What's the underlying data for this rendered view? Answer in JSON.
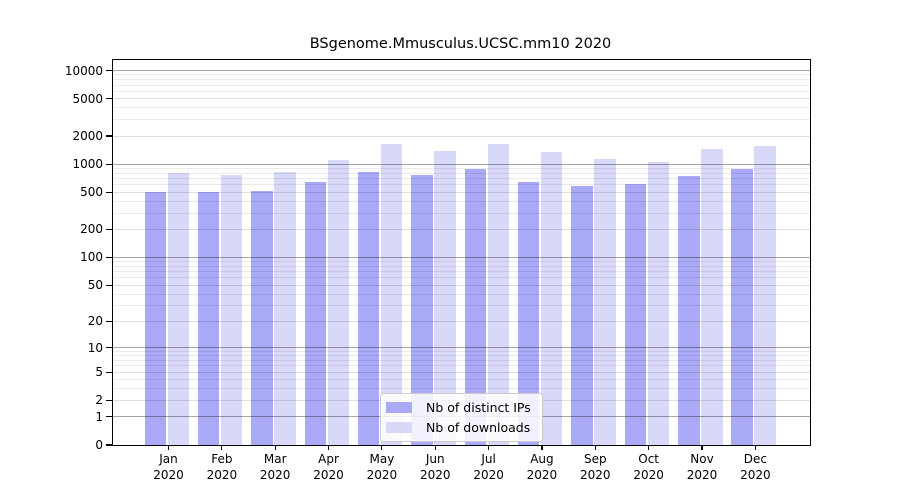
{
  "chart_data": {
    "type": "bar",
    "title": "BSgenome.Mmusculus.UCSC.mm10 2020",
    "scale": "log1p",
    "grid": true,
    "legend_position": "bottom-center-inside",
    "categories": [
      "Jan",
      "Feb",
      "Mar",
      "Apr",
      "May",
      "Jun",
      "Jul",
      "Aug",
      "Sep",
      "Oct",
      "Nov",
      "Dec"
    ],
    "year": "2020",
    "series": [
      {
        "name": "Nb of distinct IPs",
        "color": "#a9a9f5",
        "values": [
          508,
          500,
          520,
          640,
          835,
          758,
          880,
          650,
          585,
          620,
          740,
          900
        ]
      },
      {
        "name": "Nb of downloads",
        "color": "#d8d8f9",
        "values": [
          810,
          770,
          818,
          1110,
          1630,
          1400,
          1650,
          1360,
          1135,
          1060,
          1450,
          1580
        ]
      }
    ],
    "ytick_labels": [
      "0",
      "1",
      "2",
      "5",
      "10",
      "20",
      "50",
      "100",
      "200",
      "500",
      "1000",
      "2000",
      "5000",
      "10000"
    ],
    "ylim": [
      0,
      13000
    ],
    "grid_colors": {
      "major": "rgba(0,0,0,0.35)",
      "labeled": "rgba(0,0,0,0.13)",
      "minor": "rgba(0,0,0,0.08)"
    },
    "axis_color": "#000000"
  }
}
